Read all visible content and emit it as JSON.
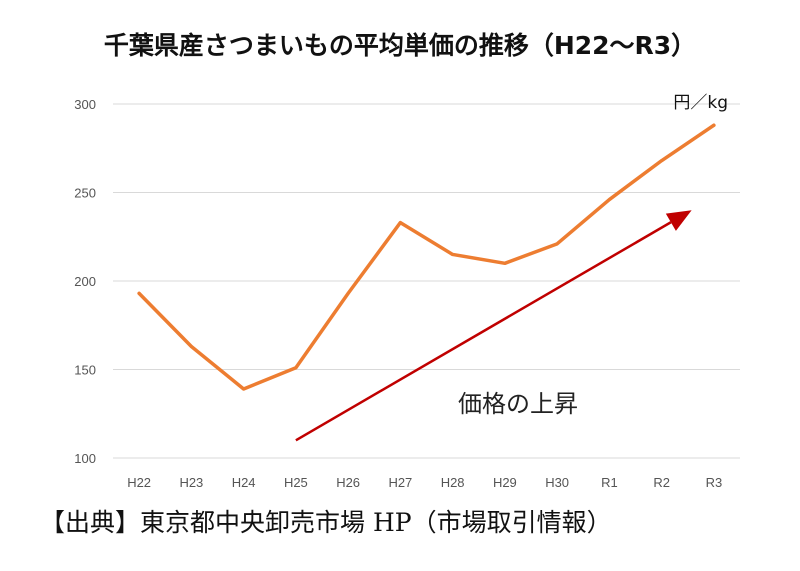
{
  "chart_data": {
    "type": "line",
    "title": "千葉県産さつまいもの平均単価の推移（H22～R3）",
    "unit_label": "円／kg",
    "categories": [
      "H22",
      "H23",
      "H24",
      "H25",
      "H26",
      "H27",
      "H28",
      "H29",
      "H30",
      "R1",
      "R2",
      "R3"
    ],
    "series": [
      {
        "values": [
          193,
          163,
          139,
          151,
          193,
          233,
          215,
          210,
          221,
          246,
          268,
          288
        ],
        "color": "#ED7D31"
      }
    ],
    "ylim": [
      100,
      300
    ],
    "yticks": [
      100,
      150,
      200,
      250,
      300
    ],
    "grid": true,
    "legend": "none",
    "annotations": [
      {
        "text": "価格の上昇",
        "arrow_color": "#C00000",
        "arrow_from": [
          "H25",
          110
        ],
        "arrow_to": [
          "R2",
          240
        ]
      }
    ]
  },
  "source_note": "【出典】東京都中央卸売市場 HP（市場取引情報）"
}
